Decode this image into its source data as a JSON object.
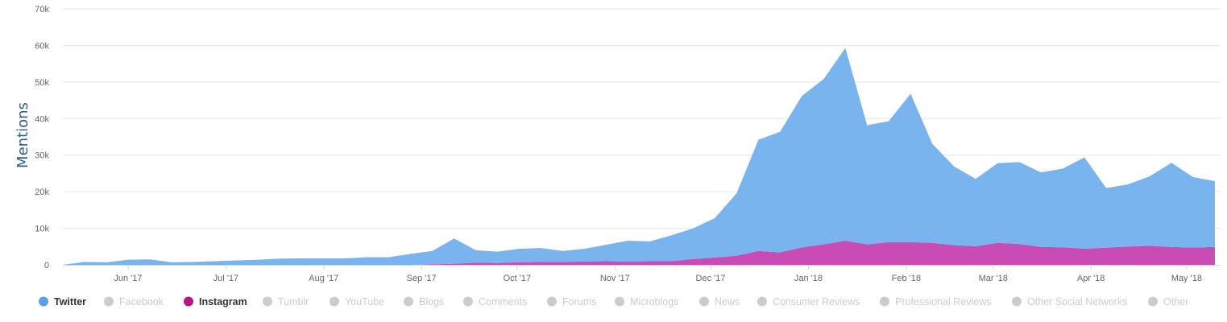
{
  "chart_data": {
    "type": "area",
    "stacked": true,
    "ylabel": "Mentions",
    "ylim": [
      0,
      70000
    ],
    "yticks": [
      {
        "value": 0,
        "label": "0"
      },
      {
        "value": 10000,
        "label": "10k"
      },
      {
        "value": 20000,
        "label": "20k"
      },
      {
        "value": 30000,
        "label": "30k"
      },
      {
        "value": 40000,
        "label": "40k"
      },
      {
        "value": 50000,
        "label": "50k"
      },
      {
        "value": 60000,
        "label": "60k"
      },
      {
        "value": 70000,
        "label": "70k"
      }
    ],
    "xticks": [
      {
        "index": 3,
        "label": "Jun '17"
      },
      {
        "index": 7.5,
        "label": "Jul '17"
      },
      {
        "index": 12,
        "label": "Aug '17"
      },
      {
        "index": 16.5,
        "label": "Sep '17"
      },
      {
        "index": 20.9,
        "label": "Oct '17"
      },
      {
        "index": 25.4,
        "label": "Nov '17"
      },
      {
        "index": 29.8,
        "label": "Dec '17"
      },
      {
        "index": 34.3,
        "label": "Jan '18"
      },
      {
        "index": 38.8,
        "label": "Feb '18"
      },
      {
        "index": 42.8,
        "label": "Mar '18"
      },
      {
        "index": 47.3,
        "label": "Apr '18"
      },
      {
        "index": 51.7,
        "label": "May '18"
      }
    ],
    "x_count": 54,
    "series": [
      {
        "name": "Instagram",
        "color": "#c94bb4",
        "values": [
          0,
          0,
          0,
          0,
          0,
          0,
          0,
          0,
          0,
          0,
          0,
          0,
          0,
          0,
          0,
          0,
          0,
          100,
          300,
          600,
          500,
          700,
          800,
          800,
          900,
          1000,
          900,
          1000,
          1000,
          1600,
          2000,
          2500,
          3800,
          3400,
          4800,
          5600,
          6600,
          5600,
          6200,
          6200,
          6000,
          5400,
          5100,
          6000,
          5700,
          4900,
          4800,
          4400,
          4700,
          5000,
          5200,
          4900,
          4700,
          4900
        ]
      },
      {
        "name": "Twitter",
        "color": "#7ab4ef",
        "values": [
          0,
          800,
          700,
          1400,
          1500,
          700,
          800,
          1000,
          1200,
          1400,
          1700,
          1800,
          1800,
          1800,
          2100,
          2100,
          3000,
          3700,
          6900,
          3400,
          3100,
          3700,
          3800,
          3000,
          3500,
          4500,
          5700,
          5400,
          7100,
          8400,
          10800,
          17100,
          30400,
          33000,
          41400,
          45200,
          52700,
          32600,
          33100,
          40600,
          27100,
          21500,
          18400,
          21800,
          22400,
          20400,
          21500,
          25000,
          16300,
          17000,
          19000,
          23000,
          19300,
          18000
        ]
      }
    ],
    "legend": [
      {
        "name": "Twitter",
        "active": true,
        "color": "#5b9fe8"
      },
      {
        "name": "Facebook",
        "active": false,
        "color": "#cccccc"
      },
      {
        "name": "Instagram",
        "active": true,
        "color": "#b8148e"
      },
      {
        "name": "Tumblr",
        "active": false,
        "color": "#cccccc"
      },
      {
        "name": "YouTube",
        "active": false,
        "color": "#cccccc"
      },
      {
        "name": "Blogs",
        "active": false,
        "color": "#cccccc"
      },
      {
        "name": "Comments",
        "active": false,
        "color": "#cccccc"
      },
      {
        "name": "Forums",
        "active": false,
        "color": "#cccccc"
      },
      {
        "name": "Microblogs",
        "active": false,
        "color": "#cccccc"
      },
      {
        "name": "News",
        "active": false,
        "color": "#cccccc"
      },
      {
        "name": "Consumer Reviews",
        "active": false,
        "color": "#cccccc"
      },
      {
        "name": "Professional Reviews",
        "active": false,
        "color": "#cccccc"
      },
      {
        "name": "Other Social Networks",
        "active": false,
        "color": "#cccccc"
      },
      {
        "name": "Other",
        "active": false,
        "color": "#cccccc"
      }
    ],
    "colors": {
      "grid": "#e6e6e6",
      "axis_label": "#2d5f8b",
      "tick": "#666666",
      "legend_active_text": "#333333",
      "legend_inactive_text": "#cccccc"
    }
  }
}
